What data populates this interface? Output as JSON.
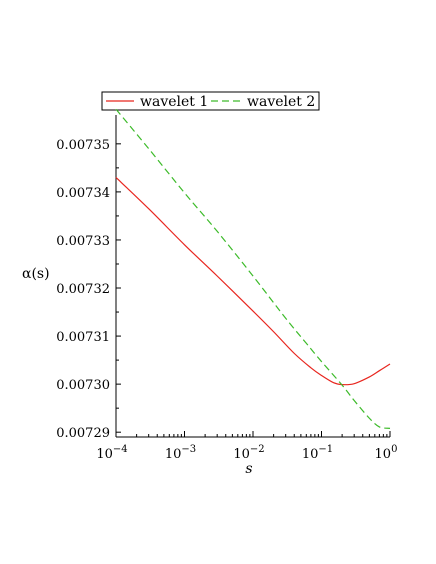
{
  "chart_data": {
    "type": "line",
    "xscale": "log",
    "xlabel": "s",
    "ylabel": "α(s)",
    "xlim": [
      0.0001,
      1
    ],
    "ylim": [
      0.007289,
      0.007356
    ],
    "grid": false,
    "legend_position": "top",
    "x_ticks": [
      {
        "value": 0.0001,
        "base": "10",
        "exp": "−4"
      },
      {
        "value": 0.001,
        "base": "10",
        "exp": "−3"
      },
      {
        "value": 0.01,
        "base": "10",
        "exp": "−2"
      },
      {
        "value": 0.1,
        "base": "10",
        "exp": "−1"
      },
      {
        "value": 1,
        "base": "10",
        "exp": "0"
      }
    ],
    "y_ticks": [
      {
        "value": 0.00729,
        "label": "0.00729"
      },
      {
        "value": 0.0073,
        "label": "0.00730"
      },
      {
        "value": 0.00731,
        "label": "0.00731"
      },
      {
        "value": 0.00732,
        "label": "0.00732"
      },
      {
        "value": 0.00733,
        "label": "0.00733"
      },
      {
        "value": 0.00734,
        "label": "0.00734"
      },
      {
        "value": 0.00735,
        "label": "0.00735"
      }
    ],
    "series": [
      {
        "name": "wavelet 1",
        "color": "#e8261f",
        "dash": "solid",
        "x": [
          0.0001,
          0.0003,
          0.001,
          0.003,
          0.01,
          0.02,
          0.04,
          0.07,
          0.1,
          0.15,
          0.2,
          0.3,
          0.5,
          0.7,
          1
        ],
        "y": [
          0.007343,
          0.0073365,
          0.007329,
          0.0073225,
          0.0073152,
          0.0073109,
          0.0073064,
          0.0073034,
          0.0073018,
          0.0073003,
          0.0072999,
          0.0073001,
          0.0073015,
          0.0073028,
          0.0073042
        ]
      },
      {
        "name": "wavelet 2",
        "color": "#3dbb2a",
        "dash": "dashed",
        "x": [
          0.0001,
          0.0003,
          0.001,
          0.003,
          0.01,
          0.03,
          0.06,
          0.1,
          0.2,
          0.3,
          0.5,
          0.7,
          1
        ],
        "y": [
          0.0073572,
          0.007349,
          0.0073398,
          0.0073318,
          0.0073225,
          0.0073137,
          0.0073085,
          0.0073047,
          0.0072998,
          0.0072966,
          0.0072929,
          0.0072911,
          0.0072908
        ]
      }
    ]
  }
}
